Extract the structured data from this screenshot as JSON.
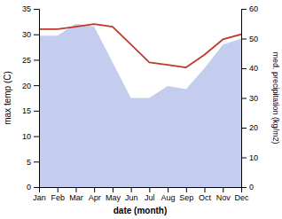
{
  "chart_data": {
    "type": "line",
    "xlabel": "date (month)",
    "ylabel": "max temp (C)",
    "y2label": "med. precipitation (kg/m2)",
    "categories": [
      "Jan",
      "Feb",
      "Mar",
      "Apr",
      "May",
      "Jun",
      "Jul",
      "Aug",
      "Sep",
      "Oct",
      "Nov",
      "Dec"
    ],
    "series": [
      {
        "type": "area",
        "axis": "y2",
        "color": "#b0bce8",
        "values": [
          51,
          51,
          55,
          54,
          42,
          30,
          30,
          34,
          33,
          40,
          48,
          50
        ]
      },
      {
        "type": "line",
        "color": "#c0392b",
        "values": [
          31,
          31,
          31.5,
          32,
          31.5,
          28,
          24.5,
          24,
          23.5,
          26,
          29,
          30
        ]
      }
    ],
    "ylim": [
      0,
      35
    ],
    "yticks": [
      0,
      5,
      10,
      15,
      20,
      25,
      30,
      35
    ],
    "y2lim": [
      0,
      60
    ],
    "y2ticks": [
      0,
      10,
      20,
      30,
      40,
      50,
      60
    ],
    "grid": false
  }
}
